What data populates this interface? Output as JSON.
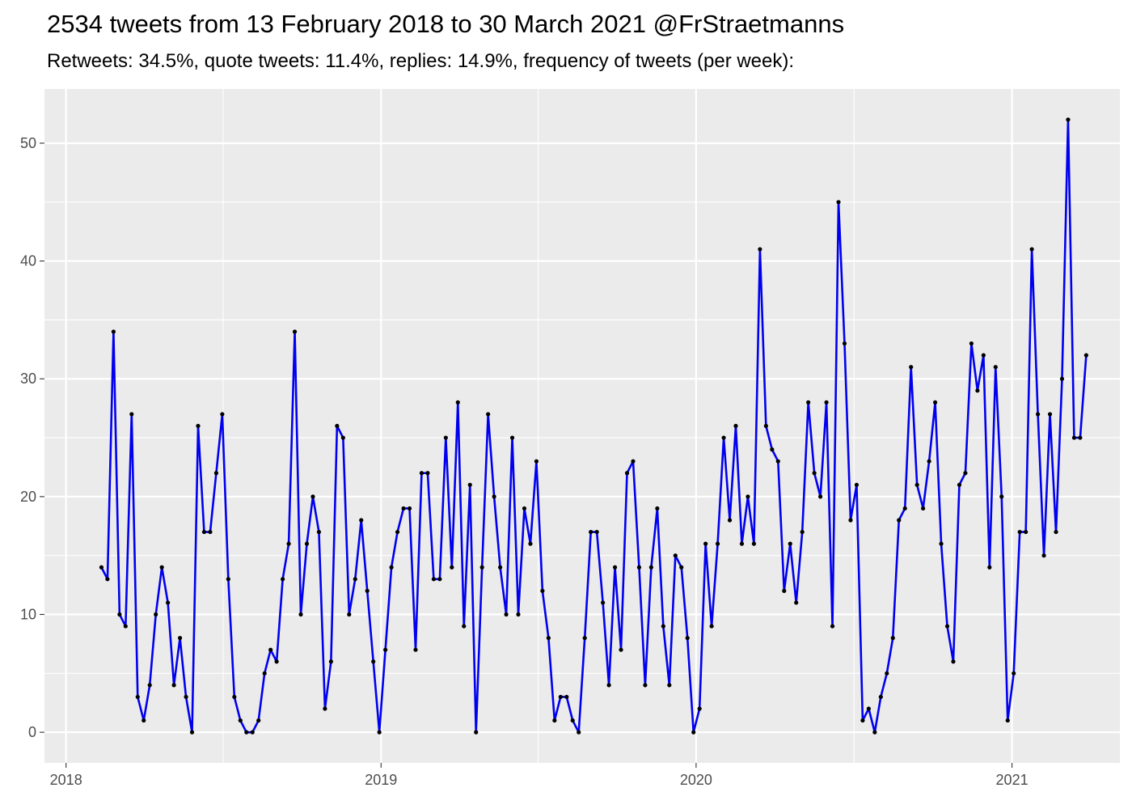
{
  "chart_data": {
    "type": "line",
    "title": "2534 tweets from 13 February 2018 to 30 March 2021 @FrStraetmanns",
    "subtitle": "Retweets: 34.5%, quote tweets: 11.4%, replies: 14.9%, frequency of tweets (per week):",
    "xlabel": "",
    "ylabel": "",
    "x_axis": {
      "type": "date",
      "range": [
        "2017-12-07",
        "2021-05-06"
      ],
      "ticks": [
        "2018-01-01",
        "2019-01-01",
        "2020-01-01",
        "2021-01-01"
      ],
      "tick_labels": [
        "2018",
        "2019",
        "2020",
        "2021"
      ],
      "minor_ticks": [
        "2018-07-02",
        "2019-07-02",
        "2020-07-02"
      ]
    },
    "y_axis": {
      "range": [
        -2.6,
        54.6
      ],
      "ticks": [
        0,
        10,
        20,
        30,
        40,
        50
      ],
      "tick_labels": [
        "0",
        "10",
        "20",
        "30",
        "40",
        "50"
      ]
    },
    "grid": true,
    "background": "#ebebeb",
    "line_color": "#0000ee",
    "point_color": "#000000",
    "series": [
      {
        "x": [
          "2018-02-11",
          "2018-02-18",
          "2018-02-25",
          "2018-03-04",
          "2018-03-11",
          "2018-03-18",
          "2018-03-25",
          "2018-04-01",
          "2018-04-08",
          "2018-04-15",
          "2018-04-22",
          "2018-04-29",
          "2018-05-06",
          "2018-05-13",
          "2018-05-20",
          "2018-05-27",
          "2018-06-03",
          "2018-06-10",
          "2018-06-17",
          "2018-06-24",
          "2018-07-01",
          "2018-07-08",
          "2018-07-15",
          "2018-07-22",
          "2018-07-29",
          "2018-08-05",
          "2018-08-12",
          "2018-08-19",
          "2018-08-26",
          "2018-09-02",
          "2018-09-09",
          "2018-09-16",
          "2018-09-23",
          "2018-09-30",
          "2018-10-07",
          "2018-10-14",
          "2018-10-21",
          "2018-10-28",
          "2018-11-04",
          "2018-11-11",
          "2018-11-18",
          "2018-11-25",
          "2018-12-02",
          "2018-12-09",
          "2018-12-16",
          "2018-12-23",
          "2018-12-30",
          "2019-01-06",
          "2019-01-13",
          "2019-01-20",
          "2019-01-27",
          "2019-02-03",
          "2019-02-10",
          "2019-02-17",
          "2019-02-24",
          "2019-03-03",
          "2019-03-10",
          "2019-03-17",
          "2019-03-24",
          "2019-03-31",
          "2019-04-07",
          "2019-04-14",
          "2019-04-21",
          "2019-04-28",
          "2019-05-05",
          "2019-05-12",
          "2019-05-19",
          "2019-05-26",
          "2019-06-02",
          "2019-06-09",
          "2019-06-16",
          "2019-06-23",
          "2019-06-30",
          "2019-07-07",
          "2019-07-14",
          "2019-07-21",
          "2019-07-28",
          "2019-08-04",
          "2019-08-11",
          "2019-08-18",
          "2019-08-25",
          "2019-09-01",
          "2019-09-08",
          "2019-09-15",
          "2019-09-22",
          "2019-09-29",
          "2019-10-06",
          "2019-10-13",
          "2019-10-20",
          "2019-10-27",
          "2019-11-03",
          "2019-11-10",
          "2019-11-17",
          "2019-11-24",
          "2019-12-01",
          "2019-12-08",
          "2019-12-15",
          "2019-12-22",
          "2019-12-29",
          "2020-01-05",
          "2020-01-12",
          "2020-01-19",
          "2020-01-26",
          "2020-02-02",
          "2020-02-09",
          "2020-02-16",
          "2020-02-23",
          "2020-03-01",
          "2020-03-08",
          "2020-03-15",
          "2020-03-22",
          "2020-03-29",
          "2020-04-05",
          "2020-04-12",
          "2020-04-19",
          "2020-04-26",
          "2020-05-03",
          "2020-05-10",
          "2020-05-17",
          "2020-05-24",
          "2020-05-31",
          "2020-06-07",
          "2020-06-14",
          "2020-06-21",
          "2020-06-28",
          "2020-07-05",
          "2020-07-12",
          "2020-07-19",
          "2020-07-26",
          "2020-08-02",
          "2020-08-09",
          "2020-08-16",
          "2020-08-23",
          "2020-08-30",
          "2020-09-06",
          "2020-09-13",
          "2020-09-20",
          "2020-09-27",
          "2020-10-04",
          "2020-10-11",
          "2020-10-18",
          "2020-10-25",
          "2020-11-01",
          "2020-11-08",
          "2020-11-15",
          "2020-11-22",
          "2020-11-29",
          "2020-12-06",
          "2020-12-13",
          "2020-12-20",
          "2020-12-27",
          "2021-01-03",
          "2021-01-10",
          "2021-01-17",
          "2021-01-24",
          "2021-01-31",
          "2021-02-07",
          "2021-02-14",
          "2021-02-21",
          "2021-02-28",
          "2021-03-07",
          "2021-03-14",
          "2021-03-21",
          "2021-03-28"
        ],
        "y": [
          14,
          13,
          34,
          10,
          9,
          27,
          3,
          1,
          4,
          10,
          14,
          11,
          4,
          8,
          3,
          0,
          26,
          17,
          17,
          22,
          27,
          13,
          3,
          1,
          0,
          0,
          1,
          5,
          7,
          6,
          13,
          16,
          34,
          10,
          16,
          20,
          17,
          2,
          6,
          26,
          25,
          10,
          13,
          18,
          12,
          6,
          0,
          7,
          14,
          17,
          19,
          19,
          7,
          22,
          22,
          13,
          13,
          25,
          14,
          28,
          9,
          21,
          0,
          14,
          27,
          20,
          14,
          10,
          25,
          10,
          19,
          16,
          23,
          12,
          8,
          1,
          3,
          3,
          1,
          0,
          8,
          17,
          17,
          11,
          4,
          14,
          7,
          22,
          23,
          14,
          4,
          14,
          19,
          9,
          4,
          15,
          14,
          8,
          0,
          2,
          16,
          9,
          16,
          25,
          18,
          26,
          16,
          20,
          16,
          41,
          26,
          24,
          23,
          12,
          16,
          11,
          17,
          28,
          22,
          20,
          28,
          9,
          45,
          33,
          18,
          21,
          1,
          2,
          0,
          3,
          5,
          8,
          18,
          19,
          31,
          21,
          19,
          23,
          28,
          16,
          9,
          6,
          21,
          22,
          33,
          29,
          32,
          14,
          31,
          20,
          1,
          5,
          17,
          17,
          41,
          27,
          15,
          27,
          17,
          30,
          52,
          25,
          25,
          32
        ]
      }
    ]
  }
}
